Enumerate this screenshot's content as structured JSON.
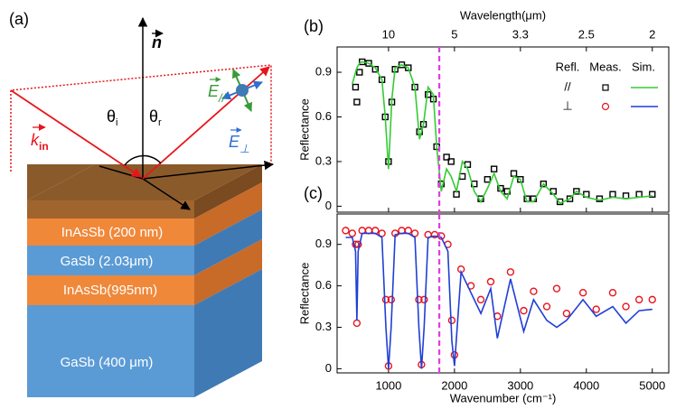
{
  "diagram": {
    "panel": "(a)",
    "normal": "n",
    "k_in": {
      "symbol": "k",
      "sub": "in"
    },
    "theta_i": {
      "symbol": "θ",
      "sub": "i"
    },
    "theta_r": {
      "symbol": "θ",
      "sub": "r"
    },
    "e_par": {
      "symbol": "E",
      "sub": "//"
    },
    "e_perp": {
      "symbol": "E",
      "sub": "⊥"
    },
    "layers": [
      "InAsSb (200 nm)",
      "GaSb (2.03μm)",
      "InAsSb(995nm)",
      "GaSb (400 μm)"
    ]
  },
  "chart_data": [
    {
      "type": "line",
      "panel": "(b)",
      "x_label": "Wavenumber (cm⁻¹)",
      "x2_label": "Wavelength(μm)",
      "y_label": "Reflectance",
      "xlim": [
        220,
        5250
      ],
      "ylim": [
        -0.04,
        1.07
      ],
      "yticks": [
        0,
        0.3,
        0.6,
        0.9
      ],
      "xticks": [
        1000,
        2000,
        3000,
        4000,
        5000
      ],
      "x2ticks": [
        {
          "value": 1000,
          "label": "10"
        },
        {
          "value": 2000,
          "label": "5"
        },
        {
          "value": 3000,
          "label": "3.3"
        },
        {
          "value": 4000,
          "label": "2.5"
        },
        {
          "value": 5000,
          "label": "2"
        }
      ],
      "vline": 1770,
      "vline_color": "#e23ce2",
      "grid": false,
      "legend": {
        "headers": [
          "Refl.",
          "Meas.",
          "Sim."
        ],
        "rows": [
          "//",
          "⊥"
        ]
      },
      "x": [
        450,
        500,
        520,
        560,
        600,
        700,
        800,
        900,
        950,
        1000,
        1050,
        1100,
        1200,
        1300,
        1400,
        1470,
        1530,
        1600,
        1680,
        1730,
        1800,
        1880,
        1950,
        2030,
        2120,
        2200,
        2300,
        2400,
        2500,
        2600,
        2700,
        2800,
        2900,
        3000,
        3100,
        3200,
        3350,
        3500,
        3600,
        3750,
        3850,
        4000,
        4200,
        4400,
        4600,
        4800,
        5000
      ],
      "series": [
        {
          "color": "#000000",
          "marker": "square",
          "values": [
            null,
            0.8,
            0.7,
            0.9,
            0.97,
            0.96,
            0.92,
            0.85,
            0.6,
            0.3,
            0.7,
            0.92,
            0.95,
            0.93,
            0.8,
            0.5,
            0.55,
            0.75,
            0.72,
            0.4,
            0.15,
            0.33,
            0.3,
            0.08,
            0.2,
            0.28,
            0.15,
            0.05,
            0.18,
            0.25,
            0.12,
            0.1,
            0.22,
            0.18,
            0.05,
            0.05,
            0.15,
            0.1,
            0.03,
            0.05,
            0.1,
            0.08,
            0.05,
            0.08,
            0.07,
            0.08,
            0.08
          ]
        },
        {
          "color": "#33cc33",
          "marker": "line",
          "values": [
            0.82,
            0.9,
            0.93,
            0.96,
            0.97,
            0.96,
            0.93,
            0.85,
            0.6,
            0.25,
            0.72,
            0.93,
            0.95,
            0.93,
            0.8,
            0.45,
            0.55,
            0.8,
            0.75,
            0.4,
            0.1,
            0.25,
            0.2,
            0.1,
            0.3,
            0.25,
            0.1,
            0.03,
            0.12,
            0.22,
            0.1,
            0.05,
            0.2,
            0.18,
            0.03,
            0.03,
            0.15,
            0.08,
            0.02,
            0.05,
            0.1,
            0.06,
            0.04,
            0.06,
            0.05,
            0.06,
            0.07
          ]
        }
      ]
    },
    {
      "type": "line",
      "panel": "(c)",
      "x_label": "Wavenumber (cm⁻¹)",
      "y_label": "Reflectance",
      "xlim": [
        220,
        5250
      ],
      "ylim": [
        -0.03,
        1.12
      ],
      "yticks": [
        0,
        0.3,
        0.6,
        0.9
      ],
      "xticks": [
        1000,
        2000,
        3000,
        4000,
        5000
      ],
      "vline": 1770,
      "vline_color": "#e23ce2",
      "grid": false,
      "x": [
        350,
        450,
        500,
        520,
        540,
        600,
        700,
        800,
        900,
        960,
        1000,
        1040,
        1100,
        1200,
        1300,
        1400,
        1460,
        1500,
        1540,
        1600,
        1700,
        1800,
        1900,
        1960,
        2000,
        2100,
        2250,
        2400,
        2550,
        2650,
        2850,
        3050,
        3200,
        3400,
        3550,
        3700,
        3950,
        4150,
        4400,
        4600,
        4800,
        5000
      ],
      "series": [
        {
          "color": "#e8141c",
          "marker": "circle",
          "values": [
            1.0,
            0.98,
            0.9,
            0.33,
            0.9,
            1.0,
            1.0,
            1.0,
            0.98,
            0.5,
            0.02,
            0.5,
            0.98,
            1.0,
            1.0,
            0.98,
            0.5,
            0.03,
            0.5,
            0.97,
            0.97,
            0.96,
            0.9,
            0.35,
            0.1,
            0.72,
            0.6,
            0.5,
            0.63,
            0.38,
            0.7,
            0.42,
            0.56,
            0.45,
            0.58,
            0.4,
            0.55,
            0.43,
            0.55,
            0.45,
            0.5,
            0.5
          ]
        },
        {
          "color": "#1f3fd6",
          "marker": "line",
          "values": [
            0.95,
            0.95,
            0.85,
            0.35,
            0.85,
            0.98,
            0.98,
            0.98,
            0.95,
            0.3,
            0.0,
            0.3,
            0.97,
            0.98,
            0.98,
            0.95,
            0.3,
            0.0,
            0.3,
            0.95,
            0.96,
            0.95,
            0.85,
            0.2,
            0.02,
            0.7,
            0.55,
            0.4,
            0.58,
            0.22,
            0.65,
            0.27,
            0.5,
            0.35,
            0.3,
            0.35,
            0.5,
            0.38,
            0.45,
            0.33,
            0.42,
            0.43
          ]
        }
      ]
    }
  ]
}
